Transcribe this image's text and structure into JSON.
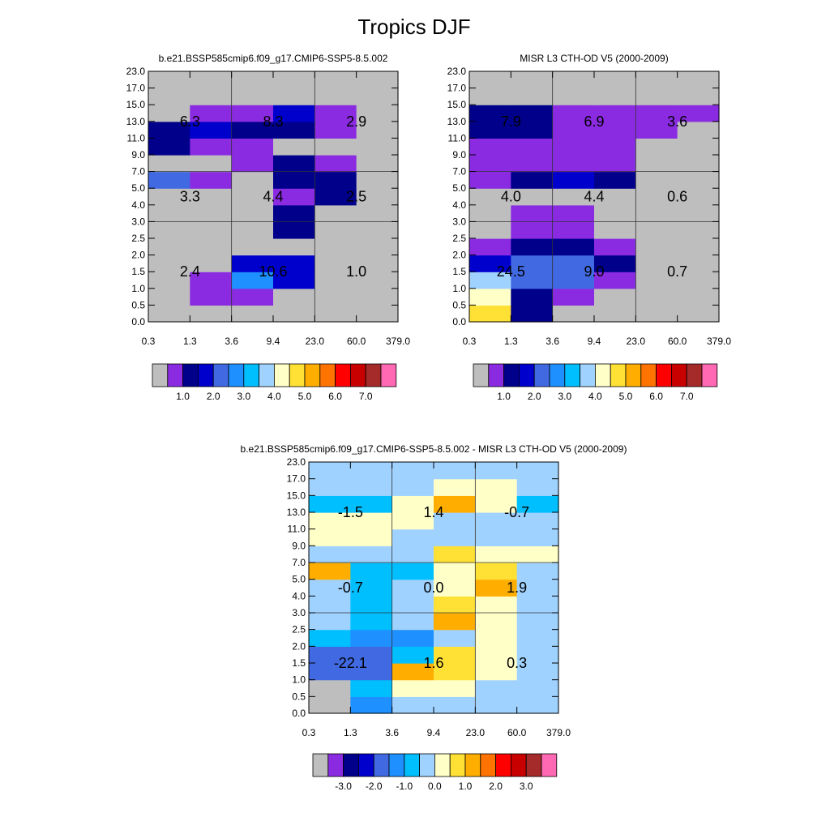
{
  "figure": {
    "title": "Tropics DJF"
  },
  "palette": [
    "#bebebe",
    "#8a2be2",
    "#00008b",
    "#0000cd",
    "#4169e1",
    "#1e90ff",
    "#00bfff",
    "#a0d2ff",
    "#ffffc8",
    "#ffe135",
    "#ffae00",
    "#ff7300",
    "#ff0000",
    "#c80000",
    "#a52a2a",
    "#ff69b4"
  ],
  "chart_data": [
    {
      "type": "heatmap",
      "title": "b.e21.BSSP585cmip6.f09_g17.CMIP6-SSP5-8.5.002",
      "x_ticks": [
        "0.3",
        "1.3",
        "3.6",
        "9.4",
        "23.0",
        "60.0",
        "379.0"
      ],
      "y_ticks": [
        "0.0",
        "0.5",
        "1.0",
        "1.5",
        "2.0",
        "2.5",
        "3.0",
        "4.0",
        "5.0",
        "7.0",
        "9.0",
        "11.0",
        "13.0",
        "15.0",
        "17.0",
        "23.0"
      ],
      "colorbar": {
        "labels": [
          "1.0",
          "2.0",
          "3.0",
          "4.0",
          "5.0",
          "6.0",
          "7.0"
        ],
        "label_offset": 2
      },
      "cells": [
        [
          0,
          0,
          0,
          0,
          0,
          0
        ],
        [
          0,
          1,
          1,
          0,
          0,
          0
        ],
        [
          0,
          1,
          5,
          3,
          0,
          0
        ],
        [
          0,
          0,
          3,
          3,
          0,
          0
        ],
        [
          0,
          0,
          0,
          0,
          0,
          0
        ],
        [
          0,
          0,
          0,
          2,
          0,
          0
        ],
        [
          0,
          0,
          0,
          2,
          0,
          0
        ],
        [
          0,
          0,
          0,
          1,
          2,
          0
        ],
        [
          4,
          1,
          0,
          2,
          2,
          0
        ],
        [
          0,
          0,
          1,
          2,
          1,
          0
        ],
        [
          2,
          1,
          1,
          0,
          0,
          0
        ],
        [
          2,
          3,
          2,
          2,
          1,
          0
        ],
        [
          0,
          1,
          1,
          3,
          1,
          0
        ],
        [
          0,
          0,
          0,
          0,
          0,
          0
        ],
        [
          0,
          0,
          0,
          0,
          0,
          0
        ]
      ],
      "annotations": [
        {
          "label": "6.3",
          "col": 0,
          "y": 13.0
        },
        {
          "label": "8.3",
          "col": 1,
          "y": 13.0
        },
        {
          "label": "2.9",
          "col": 2,
          "y": 13.0
        },
        {
          "label": "3.3",
          "col": 0,
          "y": 4.5
        },
        {
          "label": "4.4",
          "col": 1,
          "y": 4.5
        },
        {
          "label": "2.5",
          "col": 2,
          "y": 4.5
        },
        {
          "label": "2.4",
          "col": 0,
          "y": 1.5
        },
        {
          "label": "10.6",
          "col": 1,
          "y": 1.5
        },
        {
          "label": "1.0",
          "col": 2,
          "y": 1.5
        }
      ]
    },
    {
      "type": "heatmap",
      "title": "MISR L3 CTH-OD V5 (2000-2009)",
      "x_ticks": [
        "0.3",
        "1.3",
        "3.6",
        "9.4",
        "23.0",
        "60.0",
        "379.0"
      ],
      "y_ticks": [
        "0.0",
        "0.5",
        "1.0",
        "1.5",
        "2.0",
        "2.5",
        "3.0",
        "4.0",
        "5.0",
        "7.0",
        "9.0",
        "11.0",
        "13.0",
        "15.0",
        "17.0",
        "23.0"
      ],
      "colorbar": {
        "labels": [
          "1.0",
          "2.0",
          "3.0",
          "4.0",
          "5.0",
          "6.0",
          "7.0"
        ],
        "label_offset": 2
      },
      "cells": [
        [
          9,
          2,
          0,
          0,
          0,
          0
        ],
        [
          8,
          2,
          1,
          0,
          0,
          0
        ],
        [
          7,
          4,
          4,
          1,
          0,
          0
        ],
        [
          3,
          4,
          4,
          2,
          0,
          0
        ],
        [
          1,
          2,
          2,
          1,
          0,
          0
        ],
        [
          0,
          1,
          1,
          0,
          0,
          0
        ],
        [
          0,
          1,
          1,
          0,
          0,
          0
        ],
        [
          0,
          0,
          0,
          0,
          0,
          0
        ],
        [
          1,
          2,
          3,
          2,
          0,
          0
        ],
        [
          1,
          1,
          1,
          1,
          0,
          0
        ],
        [
          1,
          1,
          1,
          1,
          0,
          0
        ],
        [
          2,
          2,
          1,
          1,
          1,
          0
        ],
        [
          2,
          2,
          1,
          1,
          1,
          1
        ],
        [
          0,
          0,
          0,
          0,
          0,
          0
        ],
        [
          0,
          0,
          0,
          0,
          0,
          0
        ]
      ],
      "annotations": [
        {
          "label": "7.9",
          "col": 0,
          "y": 13.0
        },
        {
          "label": "6.9",
          "col": 1,
          "y": 13.0
        },
        {
          "label": "3.6",
          "col": 2,
          "y": 13.0
        },
        {
          "label": "4.0",
          "col": 0,
          "y": 4.5
        },
        {
          "label": "4.4",
          "col": 1,
          "y": 4.5
        },
        {
          "label": "0.6",
          "col": 2,
          "y": 4.5
        },
        {
          "label": "24.5",
          "col": 0,
          "y": 1.5
        },
        {
          "label": "9.0",
          "col": 1,
          "y": 1.5
        },
        {
          "label": "0.7",
          "col": 2,
          "y": 1.5
        }
      ]
    },
    {
      "type": "heatmap",
      "title": "b.e21.BSSP585cmip6.f09_g17.CMIP6-SSP5-8.5.002 - MISR L3 CTH-OD V5 (2000-2009)",
      "x_ticks": [
        "0.3",
        "1.3",
        "3.6",
        "9.4",
        "23.0",
        "60.0",
        "379.0"
      ],
      "y_ticks": [
        "0.0",
        "0.5",
        "1.0",
        "1.5",
        "2.0",
        "2.5",
        "3.0",
        "4.0",
        "5.0",
        "7.0",
        "9.0",
        "11.0",
        "13.0",
        "15.0",
        "17.0",
        "23.0"
      ],
      "colorbar": {
        "labels": [
          "-3.0",
          "-2.0",
          "-1.0",
          "0.0",
          "1.0",
          "2.0",
          "3.0"
        ],
        "label_offset": 2
      },
      "cells": [
        [
          0,
          5,
          7,
          7,
          7,
          7
        ],
        [
          0,
          6,
          8,
          8,
          7,
          7
        ],
        [
          4,
          4,
          10,
          9,
          8,
          7
        ],
        [
          4,
          4,
          6,
          9,
          8,
          7
        ],
        [
          6,
          5,
          5,
          7,
          8,
          7
        ],
        [
          7,
          6,
          7,
          10,
          8,
          7
        ],
        [
          7,
          6,
          7,
          9,
          8,
          7
        ],
        [
          7,
          6,
          7,
          8,
          10,
          7
        ],
        [
          10,
          6,
          6,
          8,
          9,
          7
        ],
        [
          7,
          7,
          7,
          9,
          8,
          8
        ],
        [
          8,
          8,
          7,
          7,
          7,
          7
        ],
        [
          8,
          8,
          8,
          7,
          7,
          7
        ],
        [
          6,
          6,
          8,
          10,
          8,
          6
        ],
        [
          7,
          7,
          7,
          8,
          8,
          7
        ],
        [
          7,
          7,
          7,
          7,
          7,
          7
        ]
      ],
      "annotations": [
        {
          "label": "-1.5",
          "col": 0,
          "y": 13.0
        },
        {
          "label": "1.4",
          "col": 1,
          "y": 13.0
        },
        {
          "label": "-0.7",
          "col": 2,
          "y": 13.0
        },
        {
          "label": "-0.7",
          "col": 0,
          "y": 4.5
        },
        {
          "label": "0.0",
          "col": 1,
          "y": 4.5
        },
        {
          "label": "1.9",
          "col": 2,
          "y": 4.5
        },
        {
          "label": "-22.1",
          "col": 0,
          "y": 1.5
        },
        {
          "label": "1.6",
          "col": 1,
          "y": 1.5
        },
        {
          "label": "0.3",
          "col": 2,
          "y": 1.5
        }
      ]
    }
  ]
}
